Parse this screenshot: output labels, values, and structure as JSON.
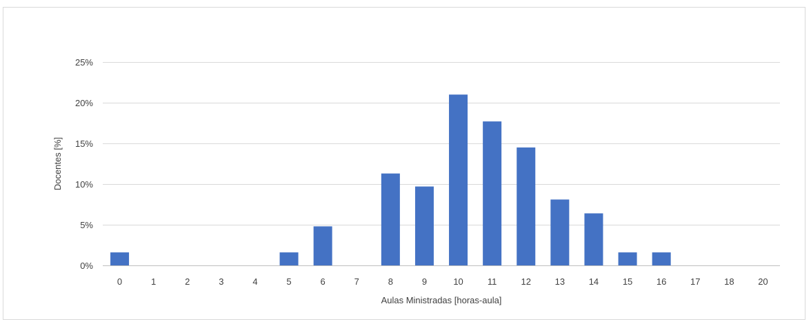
{
  "chart_data": {
    "type": "bar",
    "title": "",
    "xlabel": "Aulas Ministradas [horas-aula]",
    "ylabel": "Docentes [%]",
    "categories": [
      "0",
      "1",
      "2",
      "3",
      "4",
      "5",
      "6",
      "7",
      "8",
      "9",
      "10",
      "11",
      "12",
      "13",
      "14",
      "15",
      "16",
      "17",
      "18",
      "20"
    ],
    "values": [
      1.6,
      0,
      0,
      0,
      0,
      1.6,
      4.8,
      0,
      11.3,
      9.7,
      21.0,
      17.7,
      14.5,
      8.1,
      6.4,
      1.6,
      1.6,
      0,
      0,
      0
    ],
    "ylim": [
      0,
      25
    ],
    "yticks": [
      0,
      5,
      10,
      15,
      20,
      25
    ],
    "ytick_labels": [
      "0%",
      "5%",
      "10%",
      "15%",
      "20%",
      "25%"
    ],
    "grid": true,
    "legend": "none",
    "bar_color": "#4472c4"
  }
}
